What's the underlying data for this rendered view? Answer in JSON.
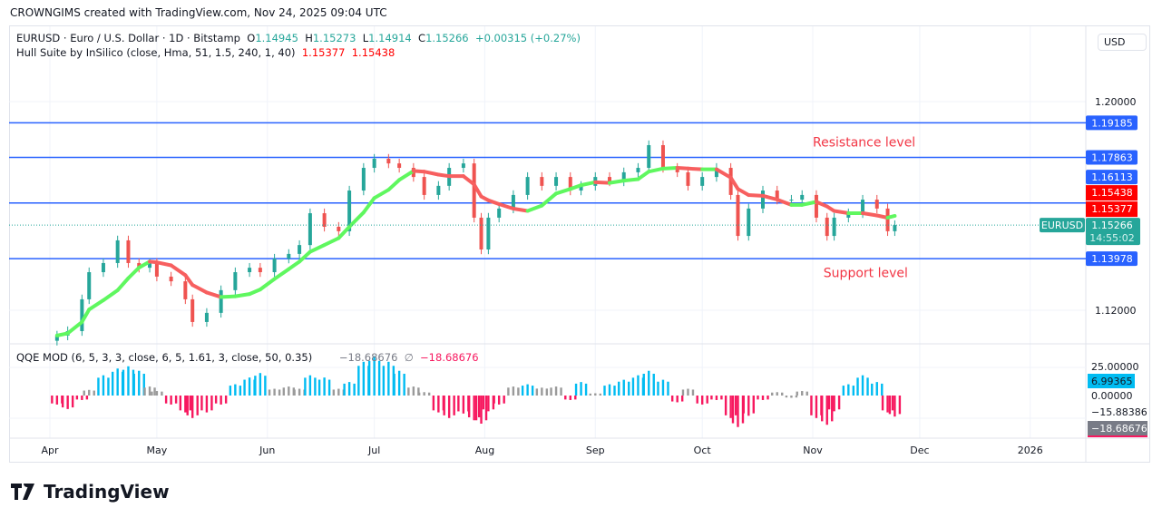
{
  "credit": "CROWNGIMS created with TradingView.com, Nov 24, 2025 09:04 UTC",
  "symbol_legend": {
    "title": "EURUSD · Euro / U.S. Dollar · 1D · Bitstamp",
    "o_label": "O",
    "o": "1.14945",
    "h_label": "H",
    "h": "1.15273",
    "l_label": "L",
    "l": "1.14914",
    "c_label": "C",
    "c": "1.15266",
    "change": "+0.00315 (+0.27%)"
  },
  "hull_legend": {
    "title": "Hull Suite by InSilico (close, Hma, 51, 1.5, 240, 1, 40)",
    "v1": "1.15377",
    "v2": "1.15438"
  },
  "qqe_legend": {
    "title": "QQE MOD (6, 5, 3, 3, close, 6, 5, 1.61, 3, close, 50, 0.35)",
    "v1": "−18.68676",
    "sym": "∅",
    "v2": "−18.68676"
  },
  "currency": "USD",
  "symbol_tag": "EURUSD",
  "countdown": "14:55:02",
  "footer_brand": "TradingView",
  "colors": {
    "up": "#26a69a",
    "down": "#ef5350",
    "level": "#2962ff",
    "hull_up": "#5ff75f",
    "hull_down": "#f75f5f",
    "qqe_up": "#00bcf2",
    "qqe_down": "#f7185f",
    "qqe_neutral": "#9a9a9a",
    "annotation": "#f23645"
  },
  "chart_data": {
    "type": "candlestick",
    "price_ticks": [
      "1.20000",
      "1.12000"
    ],
    "ylim": [
      1.105,
      1.21
    ],
    "time_ticks": [
      {
        "label": "Apr",
        "date": "2025-04-01"
      },
      {
        "label": "May",
        "date": "2025-05-01"
      },
      {
        "label": "Jun",
        "date": "2025-06-01"
      },
      {
        "label": "Jul",
        "date": "2025-07-01"
      },
      {
        "label": "Aug",
        "date": "2025-08-01"
      },
      {
        "label": "Sep",
        "date": "2025-09-01"
      },
      {
        "label": "Oct",
        "date": "2025-10-01"
      },
      {
        "label": "Nov",
        "date": "2025-11-01"
      },
      {
        "label": "Dec",
        "date": "2025-12-01"
      },
      {
        "label": "2026",
        "date": "2026-01-01"
      }
    ],
    "xlim": [
      "2025-03-30",
      "2026-02-15"
    ],
    "levels": [
      {
        "price": 1.19185,
        "label": "1.19185"
      },
      {
        "price": 1.17863,
        "label": "1.17863"
      },
      {
        "price": 1.16113,
        "label": "1.16113"
      },
      {
        "price": 1.13978,
        "label": "1.13978"
      }
    ],
    "hull_labels": [
      {
        "price": 1.15438,
        "label": "1.15438"
      },
      {
        "price": 1.15377,
        "label": "1.15377"
      }
    ],
    "last_price": {
      "price": 1.15266,
      "label": "1.15266"
    },
    "annotations": [
      {
        "text": "Resistance level",
        "price": 1.1845,
        "date": "2025-11-01"
      },
      {
        "text": "Support level",
        "price": 1.1345,
        "date": "2025-11-04"
      }
    ],
    "candles": [
      [
        "2025-04-03",
        1.1103,
        -8
      ],
      [
        "2025-04-06",
        1.112,
        -12
      ],
      [
        "2025-04-10",
        1.1242,
        -4
      ],
      [
        "2025-04-12",
        1.1346,
        5
      ],
      [
        "2025-04-16",
        1.1381,
        18
      ],
      [
        "2025-04-20",
        1.1468,
        24
      ],
      [
        "2025-04-23",
        1.1381,
        26
      ],
      [
        "2025-04-26",
        1.1363,
        22
      ],
      [
        "2025-04-29",
        1.1381,
        8
      ],
      [
        "2025-05-01",
        1.1329,
        4
      ],
      [
        "2025-05-05",
        1.1311,
        -8
      ],
      [
        "2025-05-09",
        1.1242,
        -15
      ],
      [
        "2025-05-11",
        1.1155,
        -20
      ],
      [
        "2025-05-15",
        1.119,
        -15
      ],
      [
        "2025-05-19",
        1.1277,
        -8
      ],
      [
        "2025-05-23",
        1.1346,
        10
      ],
      [
        "2025-05-27",
        1.1363,
        16
      ],
      [
        "2025-05-30",
        1.1346,
        20
      ],
      [
        "2025-06-03",
        1.1398,
        6
      ],
      [
        "2025-06-07",
        1.1416,
        8
      ],
      [
        "2025-06-10",
        1.145,
        6
      ],
      [
        "2025-06-13",
        1.1572,
        18
      ],
      [
        "2025-06-17",
        1.152,
        16
      ],
      [
        "2025-06-21",
        1.1503,
        6
      ],
      [
        "2025-06-24",
        1.1659,
        12
      ],
      [
        "2025-06-28",
        1.1746,
        30
      ],
      [
        "2025-07-01",
        1.1781,
        35
      ],
      [
        "2025-07-05",
        1.1763,
        30
      ],
      [
        "2025-07-08",
        1.1746,
        22
      ],
      [
        "2025-07-12",
        1.1711,
        8
      ],
      [
        "2025-07-15",
        1.1642,
        3
      ],
      [
        "2025-07-19",
        1.1677,
        -15
      ],
      [
        "2025-07-22",
        1.1746,
        -20
      ],
      [
        "2025-07-26",
        1.1763,
        -16
      ],
      [
        "2025-07-29",
        1.1555,
        -22
      ],
      [
        "2025-07-31",
        1.1433,
        -25
      ],
      [
        "2025-08-02",
        1.1555,
        -14
      ],
      [
        "2025-08-05",
        1.159,
        -8
      ],
      [
        "2025-08-09",
        1.1642,
        8
      ],
      [
        "2025-08-13",
        1.1711,
        10
      ],
      [
        "2025-08-17",
        1.1677,
        7
      ],
      [
        "2025-08-21",
        1.1711,
        8
      ],
      [
        "2025-08-25",
        1.1659,
        -4
      ],
      [
        "2025-08-28",
        1.1677,
        12
      ],
      [
        "2025-09-01",
        1.1711,
        2
      ],
      [
        "2025-09-05",
        1.1694,
        10
      ],
      [
        "2025-09-09",
        1.1729,
        14
      ],
      [
        "2025-09-13",
        1.1746,
        18
      ],
      [
        "2025-09-16",
        1.1833,
        22
      ],
      [
        "2025-09-20",
        1.1746,
        14
      ],
      [
        "2025-09-24",
        1.1729,
        -6
      ],
      [
        "2025-09-27",
        1.1677,
        6
      ],
      [
        "2025-10-01",
        1.1711,
        -8
      ],
      [
        "2025-10-05",
        1.1746,
        -4
      ],
      [
        "2025-10-09",
        1.1642,
        -20
      ],
      [
        "2025-10-11",
        1.1485,
        -28
      ],
      [
        "2025-10-14",
        1.159,
        -18
      ],
      [
        "2025-10-18",
        1.1659,
        -4
      ],
      [
        "2025-10-22",
        1.1624,
        3
      ],
      [
        "2025-10-26",
        1.1624,
        -2
      ],
      [
        "2025-10-29",
        1.1642,
        4
      ],
      [
        "2025-11-02",
        1.1555,
        -20
      ],
      [
        "2025-11-05",
        1.1485,
        -26
      ],
      [
        "2025-11-07",
        1.1555,
        -14
      ],
      [
        "2025-11-11",
        1.1572,
        10
      ],
      [
        "2025-11-15",
        1.1624,
        18
      ],
      [
        "2025-11-19",
        1.159,
        12
      ],
      [
        "2025-11-22",
        1.1503,
        -15
      ],
      [
        "2025-11-24",
        1.15266,
        -18.69
      ]
    ],
    "candle_columns": [
      "date",
      "close",
      "qqe"
    ],
    "qqe_ticks": [
      "25.00000",
      "0.00000",
      "−15.88386"
    ],
    "qqe_labels": [
      {
        "value": 6.99365,
        "label": "6.99365"
      },
      {
        "value": -18.68676,
        "label": "−18.68676"
      }
    ],
    "qqe_ylim": [
      -30,
      40
    ]
  }
}
